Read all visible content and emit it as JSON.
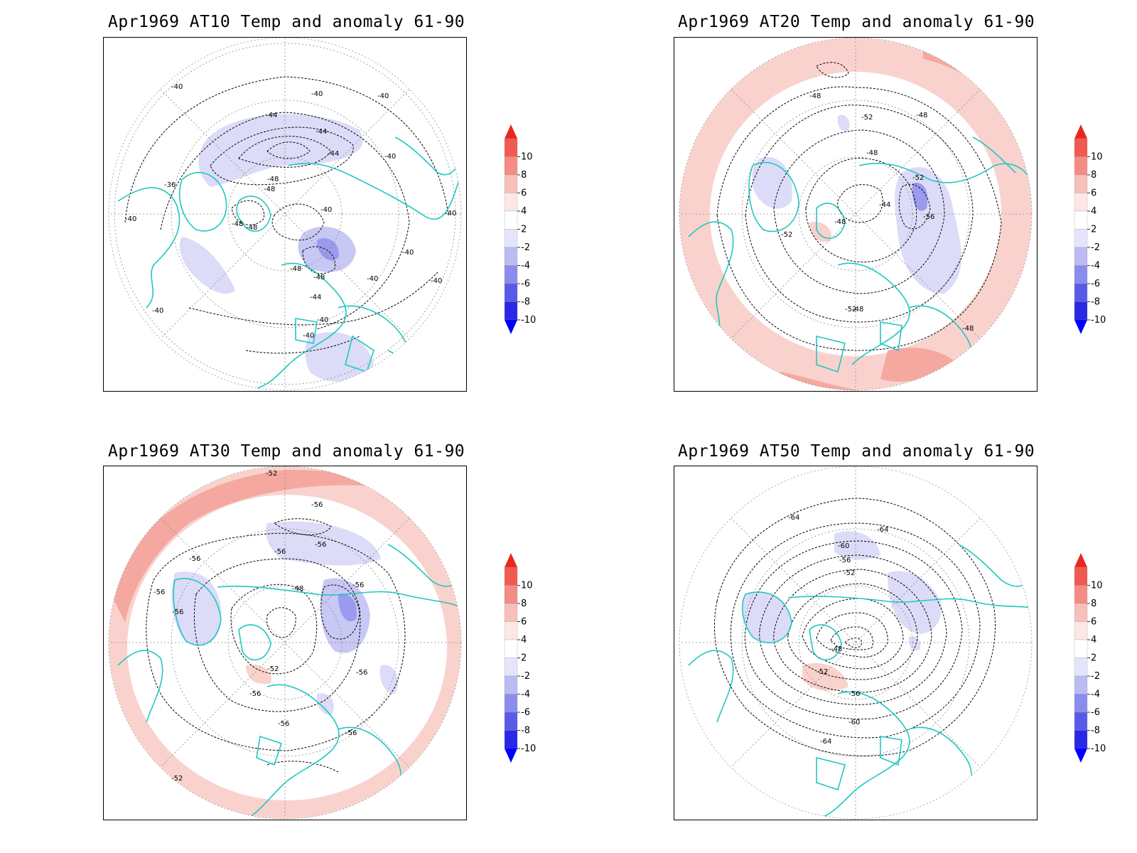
{
  "panels": [
    {
      "title": "Apr1969 AT10 Temp and anomaly 61-90",
      "contour_labels": [
        "-40",
        "-40",
        "-40",
        "-40",
        "-40",
        "-40",
        "-40",
        "-40",
        "-40",
        "-40",
        "-40",
        "-40",
        "-40",
        "-44",
        "-44",
        "-44",
        "-44",
        "-48",
        "-48",
        "-48",
        "-48",
        "-48",
        "-48",
        "-36"
      ]
    },
    {
      "title": "Apr1969 AT20 Temp and anomaly 61-90",
      "contour_labels": [
        "-48",
        "-48",
        "-48",
        "-48",
        "-48",
        "-48",
        "-52",
        "-52",
        "-52",
        "-52",
        "-56",
        "-44"
      ]
    },
    {
      "title": "Apr1969 AT30 Temp and anomaly 61-90",
      "contour_labels": [
        "-52",
        "-52",
        "-52",
        "-56",
        "-56",
        "-56",
        "-56",
        "-56",
        "-56",
        "-56",
        "-56",
        "-56",
        "-56",
        "-56",
        "-48"
      ]
    },
    {
      "title": "Apr1969 AT50 Temp and anomaly 61-90",
      "contour_labels": [
        "-64",
        "-64",
        "-64",
        "-60",
        "-60",
        "-56",
        "-56",
        "-52",
        "-52",
        "-48"
      ]
    }
  ],
  "colorbar": {
    "labels": [
      "10",
      "8",
      "6",
      "4",
      "2",
      "-2",
      "-4",
      "-6",
      "-8",
      "-10"
    ],
    "colors": [
      "#e8281e",
      "#f05a50",
      "#f48c84",
      "#f8c0ba",
      "#fde7e4",
      "#ffffff",
      "#e4e4fa",
      "#bcbcf4",
      "#8c8cee",
      "#5a5ae8",
      "#2828e6",
      "#0000ff"
    ]
  }
}
